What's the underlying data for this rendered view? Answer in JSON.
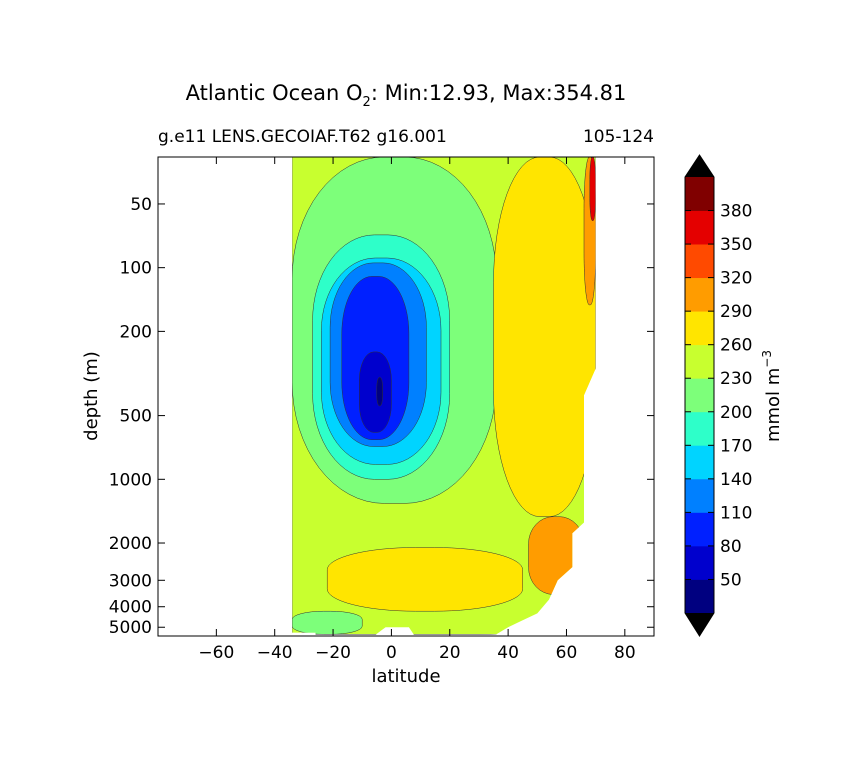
{
  "chart_data": {
    "type": "heatmap",
    "subtype": "filled-contour",
    "title_prefix": "Atlantic Ocean O",
    "title_subscript": "2",
    "title_suffix": ": Min:12.93, Max:354.81",
    "subtitle_left": "g.e11 LENS.GECOIAF.T62 g16.001",
    "subtitle_right": "105-124",
    "xlabel": "latitude",
    "ylabel": "depth (m)",
    "xlim": [
      -80,
      90
    ],
    "x_ticks": [
      -60,
      -40,
      -20,
      0,
      20,
      40,
      60,
      80
    ],
    "y_scale": "log",
    "ylim": [
      5500,
      30
    ],
    "y_ticks": [
      50,
      100,
      200,
      500,
      1000,
      2000,
      3000,
      4000,
      5000
    ],
    "colorbar": {
      "label_base": "mmol m",
      "label_exponent": "−3",
      "extend": "both",
      "tick_values": [
        50,
        80,
        110,
        140,
        170,
        200,
        230,
        260,
        290,
        320,
        350,
        380
      ],
      "levels": [
        20,
        50,
        80,
        110,
        140,
        170,
        200,
        230,
        260,
        290,
        320,
        350,
        380,
        410
      ],
      "colors": [
        "#000080",
        "#0000cd",
        "#0020ff",
        "#0080ff",
        "#00d4ff",
        "#2effc9",
        "#7dff7a",
        "#c8ff2f",
        "#ffe500",
        "#ff9c00",
        "#ff4a00",
        "#e40000",
        "#800000"
      ],
      "under_color": "#000000",
      "over_color": "#000000"
    },
    "ocean_extent": {
      "south_edge_lat": -34,
      "north_edge_lat": 70
    },
    "contour_regions": [
      {
        "value": 230,
        "lat_min": -34,
        "lat_max": 70,
        "depth_min": 30,
        "depth_max": 5400
      },
      {
        "value": 200,
        "lat_min": -34,
        "lat_max": 36,
        "depth_min": 30,
        "depth_max": 1300
      },
      {
        "value": 170,
        "lat_min": -27,
        "lat_max": 20,
        "depth_min": 70,
        "depth_max": 1000
      },
      {
        "value": 140,
        "lat_min": -24,
        "lat_max": 17,
        "depth_min": 90,
        "depth_max": 850
      },
      {
        "value": 110,
        "lat_min": -21,
        "lat_max": 12,
        "depth_min": 95,
        "depth_max": 700
      },
      {
        "value": 80,
        "lat_min": -17,
        "lat_max": 6,
        "depth_min": 110,
        "depth_max": 650
      },
      {
        "value": 50,
        "lat_min": -11,
        "lat_max": 0,
        "depth_min": 250,
        "depth_max": 600
      },
      {
        "value": 20,
        "lat_min": -5,
        "lat_max": -3,
        "depth_min": 330,
        "depth_max": 450
      },
      {
        "value": 260,
        "lat_min": 35,
        "lat_max": 70,
        "depth_min": 30,
        "depth_max": 1500
      },
      {
        "value": 290,
        "lat_min": 47,
        "lat_max": 66,
        "depth_min": 1500,
        "depth_max": 3500
      },
      {
        "value": 290,
        "lat_min": 66,
        "lat_max": 70,
        "depth_min": 30,
        "depth_max": 150
      },
      {
        "value": 350,
        "lat_min": 68,
        "lat_max": 70,
        "depth_min": 30,
        "depth_max": 60
      },
      {
        "value": 260,
        "lat_min": -22,
        "lat_max": 45,
        "depth_min": 2100,
        "depth_max": 4200
      },
      {
        "value": 200,
        "lat_min": -34,
        "lat_max": -10,
        "depth_min": 4200,
        "depth_max": 5400
      }
    ]
  }
}
